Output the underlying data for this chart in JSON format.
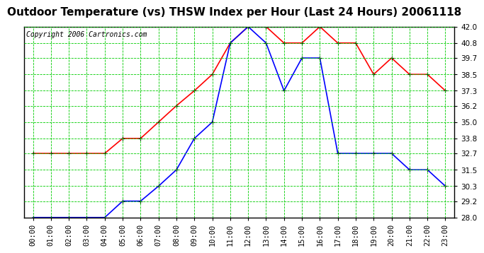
{
  "title": "Outdoor Temperature (vs) THSW Index per Hour (Last 24 Hours) 20061118",
  "copyright": "Copyright 2006 Cartronics.com",
  "hours": [
    "00:00",
    "01:00",
    "02:00",
    "03:00",
    "04:00",
    "05:00",
    "06:00",
    "07:00",
    "08:00",
    "09:00",
    "10:00",
    "11:00",
    "12:00",
    "13:00",
    "14:00",
    "15:00",
    "16:00",
    "17:00",
    "18:00",
    "19:00",
    "20:00",
    "21:00",
    "22:00",
    "23:00"
  ],
  "red_data": [
    32.7,
    32.7,
    32.7,
    32.7,
    32.7,
    33.8,
    33.8,
    35.0,
    36.2,
    37.3,
    38.5,
    40.8,
    42.0,
    42.0,
    40.8,
    40.8,
    42.0,
    40.8,
    40.8,
    38.5,
    39.7,
    38.5,
    38.5,
    37.3
  ],
  "blue_data": [
    28.0,
    28.0,
    28.0,
    28.0,
    28.0,
    29.2,
    29.2,
    30.3,
    31.5,
    33.8,
    35.0,
    40.8,
    42.0,
    40.8,
    37.3,
    39.7,
    39.7,
    32.7,
    32.7,
    32.7,
    32.7,
    31.5,
    31.5,
    30.3
  ],
  "ylim_min": 28.0,
  "ylim_max": 42.0,
  "yticks": [
    28.0,
    29.2,
    30.3,
    31.5,
    32.7,
    33.8,
    35.0,
    36.2,
    37.3,
    38.5,
    39.7,
    40.8,
    42.0
  ],
  "bg_color": "#ffffff",
  "plot_bg_color": "#ffffff",
  "grid_color": "#00cc00",
  "red_color": "#ff0000",
  "blue_color": "#0000ff",
  "marker_color": "#000000",
  "title_fontsize": 11,
  "tick_fontsize": 7.5,
  "copyright_fontsize": 7
}
